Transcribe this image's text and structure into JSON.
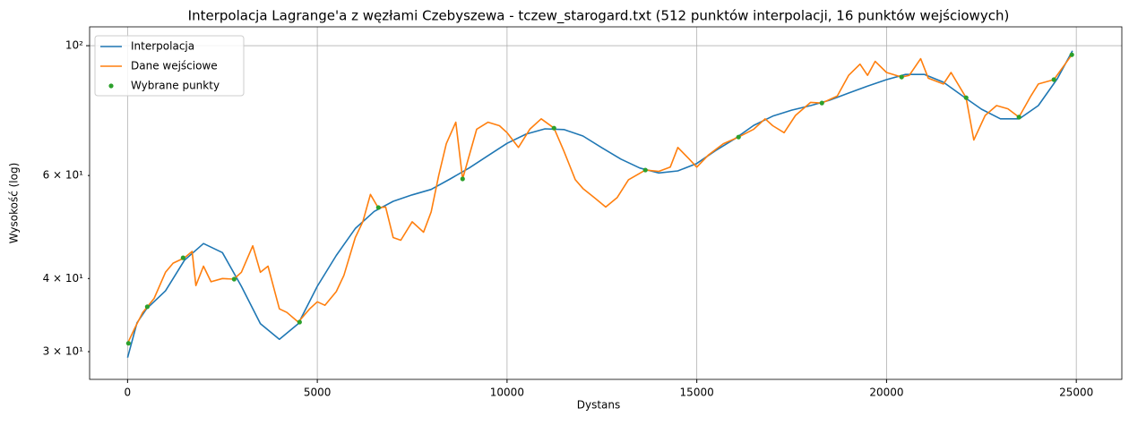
{
  "chart_data": {
    "type": "line",
    "title": "Interpolacja Lagrange'a z węzłami Czebyszewa - tczew_starogard.txt (512 punktów interpolacji, 16 punktów wejściowych)",
    "xlabel": "Dystans",
    "ylabel": "Wysokość (log)",
    "xlim": [
      -1000,
      26200
    ],
    "xticks": [
      0,
      5000,
      10000,
      15000,
      20000,
      25000
    ],
    "ylim": [
      26.9,
      107.7
    ],
    "yscale": "log",
    "yticks": [
      {
        "value": 30,
        "label": "3 × 10¹"
      },
      {
        "value": 40,
        "label": "4 × 10¹"
      },
      {
        "value": 60,
        "label": "6 × 10¹"
      },
      {
        "value": 100,
        "label": "10²"
      }
    ],
    "grid": true,
    "legend": "upper left",
    "series": [
      {
        "name": "Interpolacja",
        "color": "#1f77b4",
        "mode": "line",
        "x": [
          0,
          250,
          500,
          1000,
          1500,
          2000,
          2500,
          3000,
          3500,
          4000,
          4500,
          5000,
          5500,
          6000,
          6500,
          7000,
          7500,
          8000,
          8500,
          9000,
          9500,
          10000,
          10500,
          11000,
          11500,
          12000,
          12500,
          13000,
          13500,
          14000,
          14500,
          15000,
          15500,
          16000,
          16500,
          17000,
          17500,
          18000,
          18500,
          19000,
          19500,
          20000,
          20500,
          21000,
          21500,
          22000,
          22500,
          23000,
          23500,
          24000,
          24500,
          24900
        ],
        "values": [
          29.3,
          33.6,
          35.5,
          38.1,
          43.0,
          45.9,
          44.3,
          38.8,
          33.5,
          31.5,
          33.5,
          38.8,
          43.8,
          48.7,
          52.1,
          54.2,
          55.6,
          56.8,
          59.2,
          61.8,
          64.9,
          68.1,
          70.6,
          72.1,
          71.9,
          70.1,
          66.9,
          64.0,
          61.8,
          60.6,
          61.1,
          62.9,
          66.2,
          69.3,
          73.1,
          75.8,
          77.6,
          79.0,
          80.7,
          83.0,
          85.3,
          87.5,
          89.3,
          89.3,
          86.6,
          82.1,
          77.9,
          75.0,
          75.0,
          79.0,
          87.8,
          98.0
        ]
      },
      {
        "name": "Dane wejściowe",
        "color": "#ff7f0e",
        "mode": "line",
        "x": [
          0,
          200,
          400,
          700,
          1000,
          1200,
          1500,
          1700,
          1800,
          2000,
          2200,
          2500,
          2800,
          3000,
          3300,
          3500,
          3700,
          4000,
          4200,
          4500,
          4800,
          5000,
          5200,
          5500,
          5700,
          6000,
          6200,
          6400,
          6600,
          6800,
          7000,
          7200,
          7500,
          7800,
          8000,
          8200,
          8400,
          8650,
          8829,
          9200,
          9500,
          9800,
          10000,
          10300,
          10600,
          10900,
          11237,
          11500,
          11800,
          12000,
          12300,
          12600,
          12900,
          13200,
          13645,
          14000,
          14300,
          14500,
          14800,
          15000,
          15300,
          15700,
          16100,
          16500,
          16800,
          17000,
          17300,
          17600,
          18000,
          18296,
          18700,
          19000,
          19300,
          19500,
          19700,
          20000,
          20397,
          20600,
          20900,
          21100,
          21500,
          21700,
          22097,
          22300,
          22600,
          22900,
          23200,
          23489,
          23800,
          24000,
          24410,
          24882
        ],
        "values": [
          31,
          33,
          35,
          37,
          41,
          42.5,
          43.4,
          44.5,
          38.9,
          42,
          39.5,
          40,
          39.9,
          41,
          45.5,
          41,
          42,
          35.5,
          35,
          33.7,
          35.5,
          36.5,
          36,
          38,
          40.5,
          47,
          50,
          55.7,
          52.9,
          53,
          47,
          46.5,
          50,
          48,
          52,
          60,
          68,
          74,
          59.2,
          72,
          74,
          73,
          71,
          67,
          72,
          75,
          72.3,
          66,
          59,
          57,
          55,
          53,
          55,
          59,
          61.3,
          61,
          62,
          67,
          64,
          62,
          65,
          68,
          69.8,
          72,
          75,
          73,
          71,
          76,
          80,
          79.8,
          82,
          89,
          93,
          89,
          94,
          90,
          88.4,
          89,
          95,
          88,
          86,
          90,
          81.5,
          69,
          76,
          79,
          78,
          75.5,
          82,
          86,
          87.5,
          96.5
        ]
      },
      {
        "name": "Wybrane punkty",
        "color": "#2ca02c",
        "mode": "scatter",
        "x": [
          24,
          520,
          1464,
          2809,
          4533,
          6610,
          8829,
          11237,
          13645,
          16100,
          18296,
          20397,
          22097,
          23489,
          24410,
          24882
        ],
        "values": [
          31.0,
          35.8,
          43.4,
          39.9,
          33.7,
          52.9,
          59.2,
          72.3,
          61.3,
          69.8,
          79.8,
          88.4,
          81.5,
          75.5,
          87.5,
          96.5
        ]
      }
    ]
  }
}
